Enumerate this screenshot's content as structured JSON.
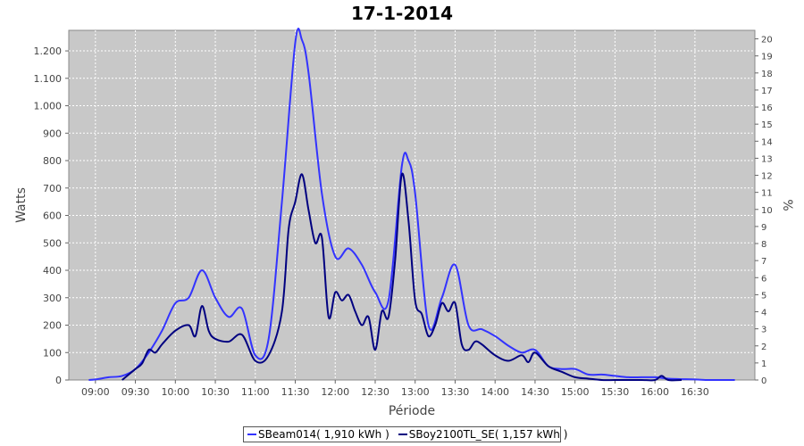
{
  "chart_data": {
    "type": "line",
    "title": "17-1-2014",
    "xlabel": "Période",
    "ylabel": "Watts",
    "ylabel_right": "%",
    "ylim": [
      0,
      1275
    ],
    "ylim_right": [
      0,
      20.5
    ],
    "y_ticks": [
      0,
      100,
      200,
      300,
      400,
      500,
      600,
      700,
      800,
      900,
      1000,
      1100,
      1200
    ],
    "y_tick_labels": [
      "0",
      "100",
      "200",
      "300",
      "400",
      "500",
      "600",
      "700",
      "800",
      "900",
      "1.000",
      "1.100",
      "1.200"
    ],
    "y_right_ticks": [
      0,
      1,
      2,
      3,
      4,
      5,
      6,
      7,
      8,
      9,
      10,
      11,
      12,
      13,
      14,
      15,
      16,
      17,
      18,
      19,
      20
    ],
    "x_range": [
      "08:40",
      "17:15"
    ],
    "x_ticks": [
      "09:00",
      "09:30",
      "10:00",
      "10:30",
      "11:00",
      "11:30",
      "12:00",
      "12:30",
      "13:00",
      "13:30",
      "14:00",
      "14:30",
      "15:00",
      "15:30",
      "16:00",
      "16:30"
    ],
    "grid": true,
    "background": "#c8c8c8",
    "legend_position": "bottom",
    "series": [
      {
        "name": "SBeam014( 1,910 kWh )",
        "color": "#3333ff",
        "x": [
          "08:55",
          "09:00",
          "09:10",
          "09:20",
          "09:30",
          "09:40",
          "09:50",
          "10:00",
          "10:10",
          "10:20",
          "10:30",
          "10:40",
          "10:50",
          "11:00",
          "11:10",
          "11:20",
          "11:30",
          "11:35",
          "11:40",
          "11:50",
          "12:00",
          "12:10",
          "12:20",
          "12:30",
          "12:40",
          "12:50",
          "12:55",
          "13:00",
          "13:10",
          "13:20",
          "13:30",
          "13:40",
          "13:50",
          "14:00",
          "14:10",
          "14:20",
          "14:30",
          "14:40",
          "14:50",
          "15:00",
          "15:10",
          "15:20",
          "15:30",
          "15:40",
          "15:50",
          "16:00",
          "16:10",
          "16:20",
          "16:30",
          "16:40",
          "16:50",
          "17:00"
        ],
        "y": [
          0,
          2,
          10,
          15,
          40,
          100,
          180,
          280,
          300,
          400,
          300,
          230,
          260,
          90,
          150,
          650,
          1230,
          1240,
          1120,
          680,
          450,
          480,
          420,
          320,
          290,
          780,
          800,
          680,
          200,
          300,
          420,
          200,
          185,
          160,
          125,
          100,
          110,
          50,
          40,
          40,
          20,
          20,
          15,
          10,
          10,
          10,
          5,
          3,
          2,
          0,
          0,
          0
        ]
      },
      {
        "name": "SBoy2100TL_SE( 1,157 kWh )",
        "color": "#000080",
        "x": [
          "09:20",
          "09:30",
          "09:35",
          "09:40",
          "09:45",
          "09:50",
          "10:00",
          "10:10",
          "10:15",
          "10:20",
          "10:25",
          "10:30",
          "10:40",
          "10:50",
          "11:00",
          "11:10",
          "11:20",
          "11:25",
          "11:30",
          "11:35",
          "11:40",
          "11:45",
          "11:50",
          "11:55",
          "12:00",
          "12:05",
          "12:10",
          "12:15",
          "12:20",
          "12:25",
          "12:30",
          "12:35",
          "12:40",
          "12:45",
          "12:50",
          "12:55",
          "13:00",
          "13:05",
          "13:10",
          "13:15",
          "13:20",
          "13:25",
          "13:30",
          "13:35",
          "13:40",
          "13:45",
          "13:50",
          "14:00",
          "14:10",
          "14:20",
          "14:25",
          "14:30",
          "14:40",
          "14:50",
          "15:00",
          "15:10",
          "15:20",
          "15:30",
          "15:40",
          "15:50",
          "16:00",
          "16:05",
          "16:10",
          "16:20"
        ],
        "y": [
          0,
          40,
          60,
          110,
          100,
          130,
          180,
          200,
          160,
          270,
          180,
          150,
          140,
          165,
          70,
          90,
          250,
          550,
          650,
          750,
          620,
          500,
          520,
          230,
          320,
          290,
          310,
          250,
          200,
          230,
          110,
          250,
          230,
          440,
          750,
          580,
          290,
          240,
          160,
          200,
          280,
          250,
          280,
          130,
          110,
          140,
          130,
          90,
          70,
          90,
          65,
          100,
          50,
          30,
          10,
          5,
          0,
          0,
          0,
          0,
          0,
          15,
          0,
          0
        ]
      }
    ]
  }
}
